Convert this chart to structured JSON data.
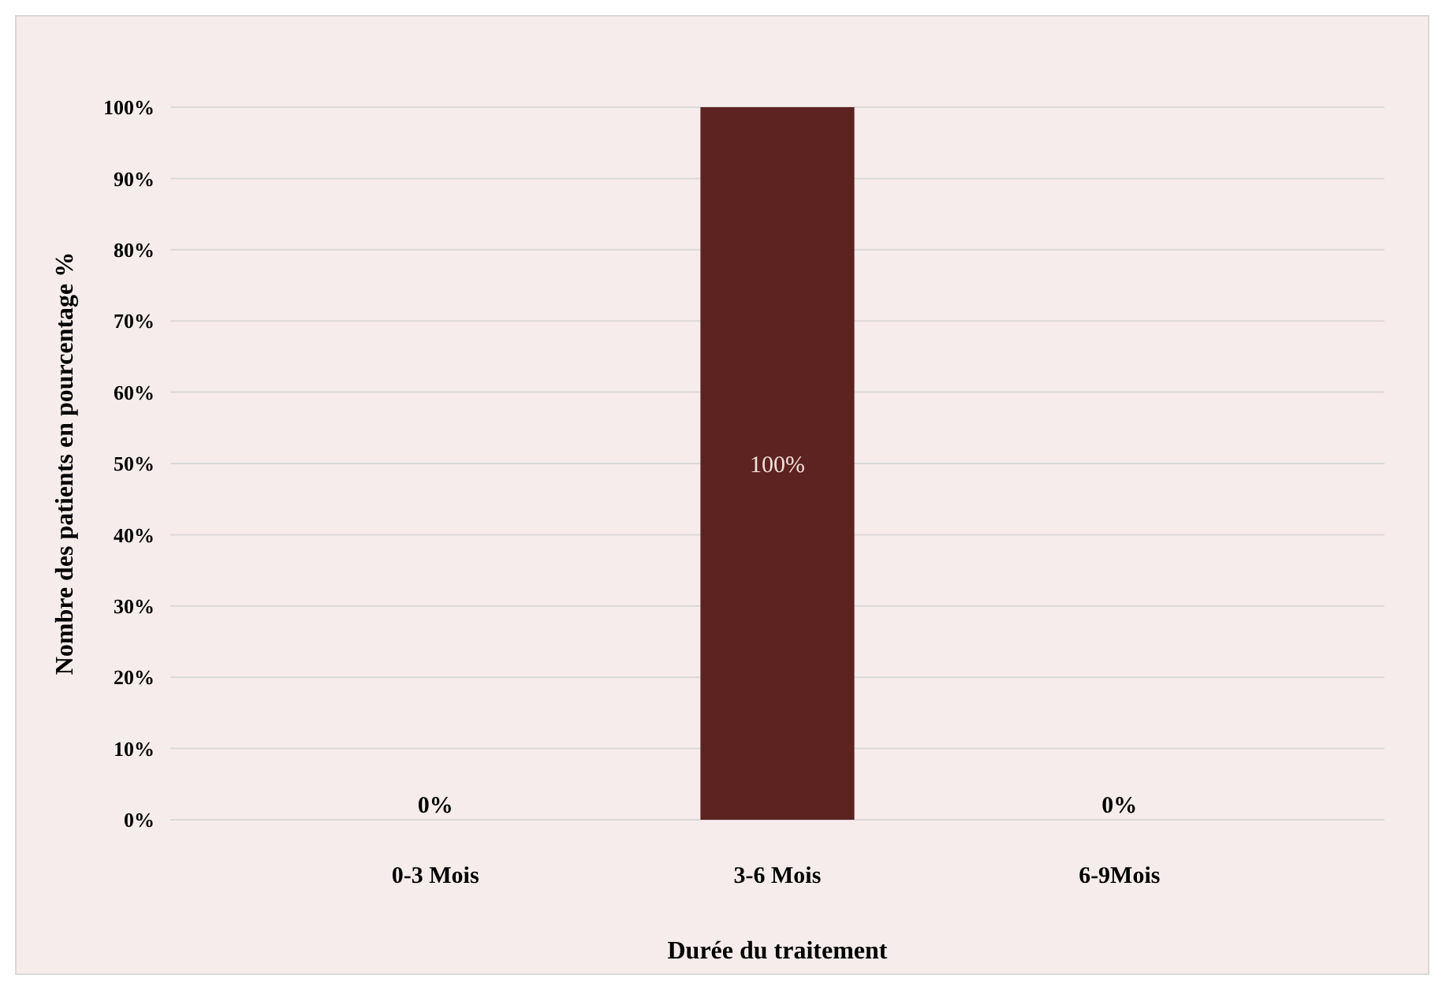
{
  "chart_data": {
    "type": "bar",
    "xlabel": "Durée du traitement",
    "ylabel": "Nombre des patients en pourcentage %",
    "categories": [
      "0-3 Mois",
      "3-6 Mois",
      "6-9Mois"
    ],
    "values": [
      0,
      100,
      0
    ],
    "color": "#5c2320",
    "value_labels": [
      "0%",
      "100%",
      "0%"
    ],
    "ylim": [
      0,
      100
    ],
    "yticks": [
      {
        "value": 0,
        "label": "0%"
      },
      {
        "value": 10,
        "label": "10%"
      },
      {
        "value": 20,
        "label": "20%"
      },
      {
        "value": 30,
        "label": "30%"
      },
      {
        "value": 40,
        "label": "40%"
      },
      {
        "value": 50,
        "label": "50%"
      },
      {
        "value": 60,
        "label": "60%"
      },
      {
        "value": 70,
        "label": "70%"
      },
      {
        "value": 80,
        "label": "80%"
      },
      {
        "value": 90,
        "label": "90%"
      },
      {
        "value": 100,
        "label": "100%"
      }
    ],
    "grid": "y"
  }
}
